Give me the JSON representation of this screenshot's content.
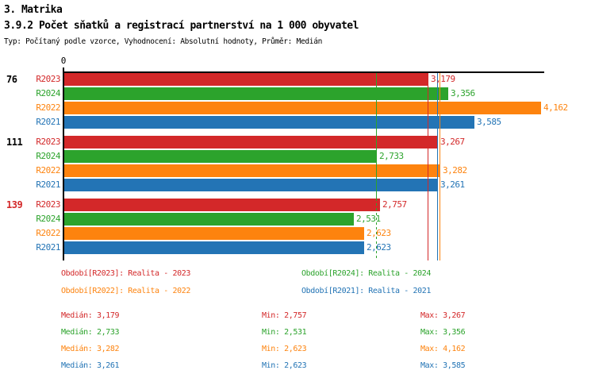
{
  "header": {
    "title": "3. Matrika",
    "subtitle": "3.9.2 Počet sňatků a registrací partnerství na 1 000 obyvatel",
    "description": "Typ: Počítaný podle vzorce, Vyhodnocení: Absolutní hodnoty, Průměr: Medián"
  },
  "colors": {
    "R2023": "#d32829",
    "R2024": "#2ca32c",
    "R2022": "#fd830e",
    "R2021": "#2374b5",
    "axis": "#000000",
    "group_label_default": "#000000",
    "group_label_highlight": "#d32829"
  },
  "chart_data": {
    "type": "bar",
    "orientation": "horizontal",
    "title": "3.9.2 Počet sňatků a registrací partnerství na 1 000 obyvatel",
    "xlabel": "",
    "ylabel": "",
    "xlim": [
      0,
      4.2
    ],
    "origin_tick_label": "0",
    "grid": false,
    "legend_position": "bottom",
    "categories": [
      "76",
      "111",
      "139"
    ],
    "series_order": [
      "R2023",
      "R2024",
      "R2022",
      "R2021"
    ],
    "groups": [
      {
        "label": "76",
        "highlighted": false,
        "bars": [
          {
            "series": "R2023",
            "value": 3.179,
            "text": "3,179"
          },
          {
            "series": "R2024",
            "value": 3.356,
            "text": "3,356"
          },
          {
            "series": "R2022",
            "value": 4.162,
            "text": "4,162"
          },
          {
            "series": "R2021",
            "value": 3.585,
            "text": "3,585"
          }
        ]
      },
      {
        "label": "111",
        "highlighted": false,
        "bars": [
          {
            "series": "R2023",
            "value": 3.267,
            "text": "3,267"
          },
          {
            "series": "R2024",
            "value": 2.733,
            "text": "2,733"
          },
          {
            "series": "R2022",
            "value": 3.282,
            "text": "3,282"
          },
          {
            "series": "R2021",
            "value": 3.261,
            "text": "3,261"
          }
        ]
      },
      {
        "label": "139",
        "highlighted": true,
        "bars": [
          {
            "series": "R2023",
            "value": 2.757,
            "text": "2,757"
          },
          {
            "series": "R2024",
            "value": 2.531,
            "text": "2,531"
          },
          {
            "series": "R2022",
            "value": 2.623,
            "text": "2,623"
          },
          {
            "series": "R2021",
            "value": 2.623,
            "text": "2,623"
          }
        ]
      }
    ],
    "median_lines": [
      {
        "series": "R2023",
        "value": 3.179,
        "style": "solid"
      },
      {
        "series": "R2024",
        "value": 2.733,
        "style": "dashed-lower"
      },
      {
        "series": "R2022",
        "value": 3.282,
        "style": "solid"
      },
      {
        "series": "R2021",
        "value": 3.261,
        "style": "solid"
      }
    ]
  },
  "legend": [
    {
      "series": "R2023",
      "text": "Období[R2023]: Realita - 2023"
    },
    {
      "series": "R2024",
      "text": "Období[R2024]: Realita - 2024"
    },
    {
      "series": "R2022",
      "text": "Období[R2022]: Realita - 2022"
    },
    {
      "series": "R2021",
      "text": "Období[R2021]: Realita - 2021"
    }
  ],
  "stats": [
    {
      "series": "R2023",
      "median": "Medián: 3,179",
      "min": "Min: 2,757",
      "max": "Max: 3,267"
    },
    {
      "series": "R2024",
      "median": "Medián: 2,733",
      "min": "Min: 2,531",
      "max": "Max: 3,356"
    },
    {
      "series": "R2022",
      "median": "Medián: 3,282",
      "min": "Min: 2,623",
      "max": "Max: 4,162"
    },
    {
      "series": "R2021",
      "median": "Medián: 3,261",
      "min": "Min: 2,623",
      "max": "Max: 3,585"
    }
  ]
}
